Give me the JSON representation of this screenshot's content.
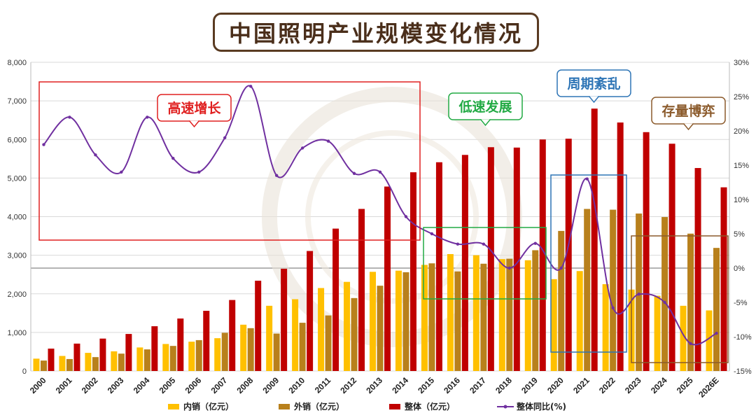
{
  "title": "中国照明产业规模变化情况",
  "chart_data": {
    "type": "bar",
    "categories": [
      "2000",
      "2001",
      "2002",
      "2003",
      "2004",
      "2005",
      "2006",
      "2007",
      "2008",
      "2009",
      "2010",
      "2011",
      "2012",
      "2013",
      "2014",
      "2015",
      "2016",
      "2017",
      "2018",
      "2019",
      "2020",
      "2021",
      "2022",
      "2023",
      "2024",
      "2025",
      "2026E"
    ],
    "series": [
      {
        "name": "内销（亿元）",
        "kind": "bar",
        "color": "#FFC000",
        "values": [
          320,
          390,
          470,
          510,
          610,
          700,
          760,
          850,
          1200,
          1690,
          1860,
          2150,
          2310,
          2570,
          2600,
          2750,
          3030,
          3000,
          2900,
          2870,
          2380,
          2590,
          2250,
          2110,
          1950,
          1690,
          1570
        ]
      },
      {
        "name": "外销（亿元）",
        "kind": "bar",
        "color": "#B8801C",
        "values": [
          270,
          310,
          360,
          450,
          560,
          650,
          800,
          990,
          1110,
          970,
          1250,
          1440,
          1890,
          2210,
          2560,
          2790,
          2580,
          2780,
          2910,
          3130,
          3630,
          4200,
          4180,
          4080,
          3990,
          3560,
          3190
        ]
      },
      {
        "name": "整体（亿元）",
        "kind": "bar",
        "color": "#C00000",
        "values": [
          580,
          710,
          840,
          960,
          1160,
          1360,
          1560,
          1840,
          2340,
          2650,
          3110,
          3690,
          4200,
          4780,
          5150,
          5410,
          5600,
          5800,
          5790,
          6000,
          6020,
          6800,
          6440,
          6190,
          5890,
          5260,
          4760
        ]
      },
      {
        "name": "整体同比(%)",
        "kind": "line",
        "axis": "right",
        "color": "#7030A0",
        "values": [
          18.0,
          22.0,
          16.5,
          14.0,
          22.0,
          16.0,
          14.0,
          19.0,
          26.5,
          13.5,
          17.5,
          18.5,
          13.8,
          14.0,
          7.5,
          5.0,
          3.5,
          3.5,
          0.0,
          3.6,
          0.0,
          13.0,
          -5.8,
          -3.8,
          -5.0,
          -11.0,
          -9.5
        ]
      }
    ],
    "left_axis": {
      "min": 0,
      "max": 8000,
      "ticks": [
        "0",
        "1,000",
        "2,000",
        "3,000",
        "4,000",
        "5,000",
        "6,000",
        "7,000",
        "8,000"
      ]
    },
    "right_axis": {
      "min": -15,
      "max": 30,
      "ticks": [
        "-15%",
        "-10%",
        "-5%",
        "0%",
        "5%",
        "10%",
        "15%",
        "20%",
        "25%",
        "30%"
      ]
    },
    "legend_position": "bottom",
    "phases": [
      {
        "label": "高速增长",
        "color": "#E02020"
      },
      {
        "label": "低速发展",
        "color": "#22AA44"
      },
      {
        "label": "周期紊乱",
        "color": "#2E75B6"
      },
      {
        "label": "存量博弈",
        "color": "#8B5A2B"
      }
    ]
  }
}
